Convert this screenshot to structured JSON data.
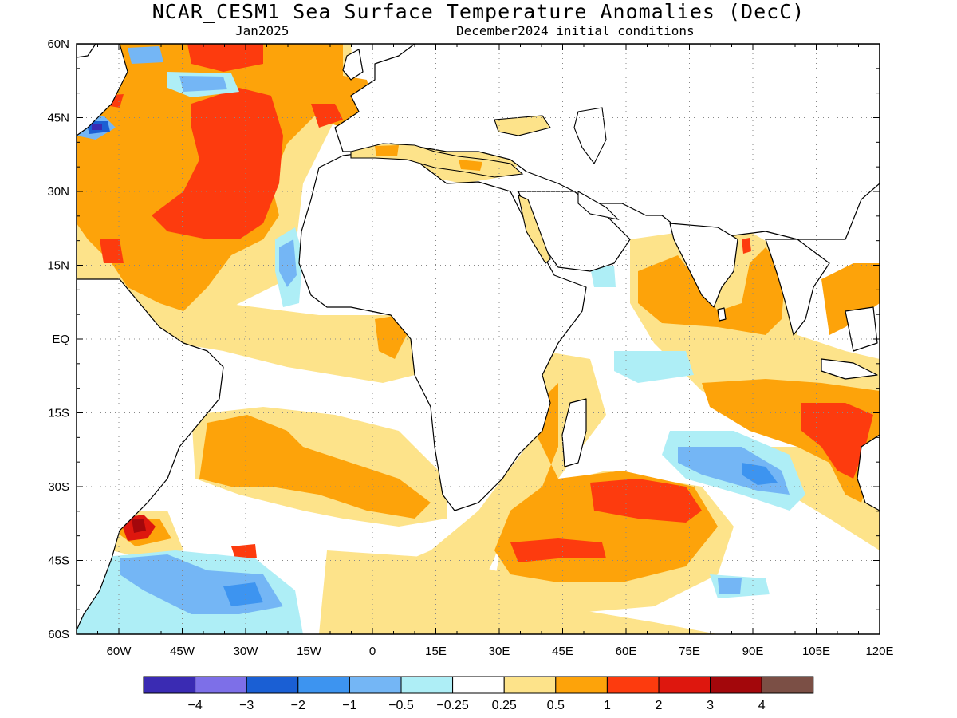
{
  "title": "NCAR_CESM1 Sea Surface Temperature Anomalies (DecC)",
  "subtitle_left": "Jan2025",
  "subtitle_right": "December2024 initial conditions",
  "map": {
    "lon_range": [
      -70,
      120
    ],
    "lat_range": [
      -60,
      60
    ],
    "lon_ticks": [
      "60W",
      "45W",
      "30W",
      "15W",
      "0",
      "15E",
      "30E",
      "45E",
      "60E",
      "75E",
      "90E",
      "105E",
      "120E"
    ],
    "lat_ticks": [
      "60N",
      "45N",
      "30N",
      "15N",
      "EQ",
      "15S",
      "30S",
      "45S",
      "60S"
    ],
    "grid": "dotted"
  },
  "colorbar": {
    "colors": [
      "#3a2bb3",
      "#7d6fe8",
      "#1a5fd4",
      "#3d94f0",
      "#74b6f5",
      "#aeeef6",
      "#ffffff",
      "#fde38a",
      "#fda30a",
      "#fd3b0e",
      "#de170e",
      "#a3070b",
      "#7b4f45"
    ],
    "labels": [
      "−4",
      "−3",
      "−2",
      "−1",
      "−0.5",
      "−0.25",
      "0.25",
      "0.5",
      "1",
      "2",
      "3",
      "4"
    ]
  }
}
